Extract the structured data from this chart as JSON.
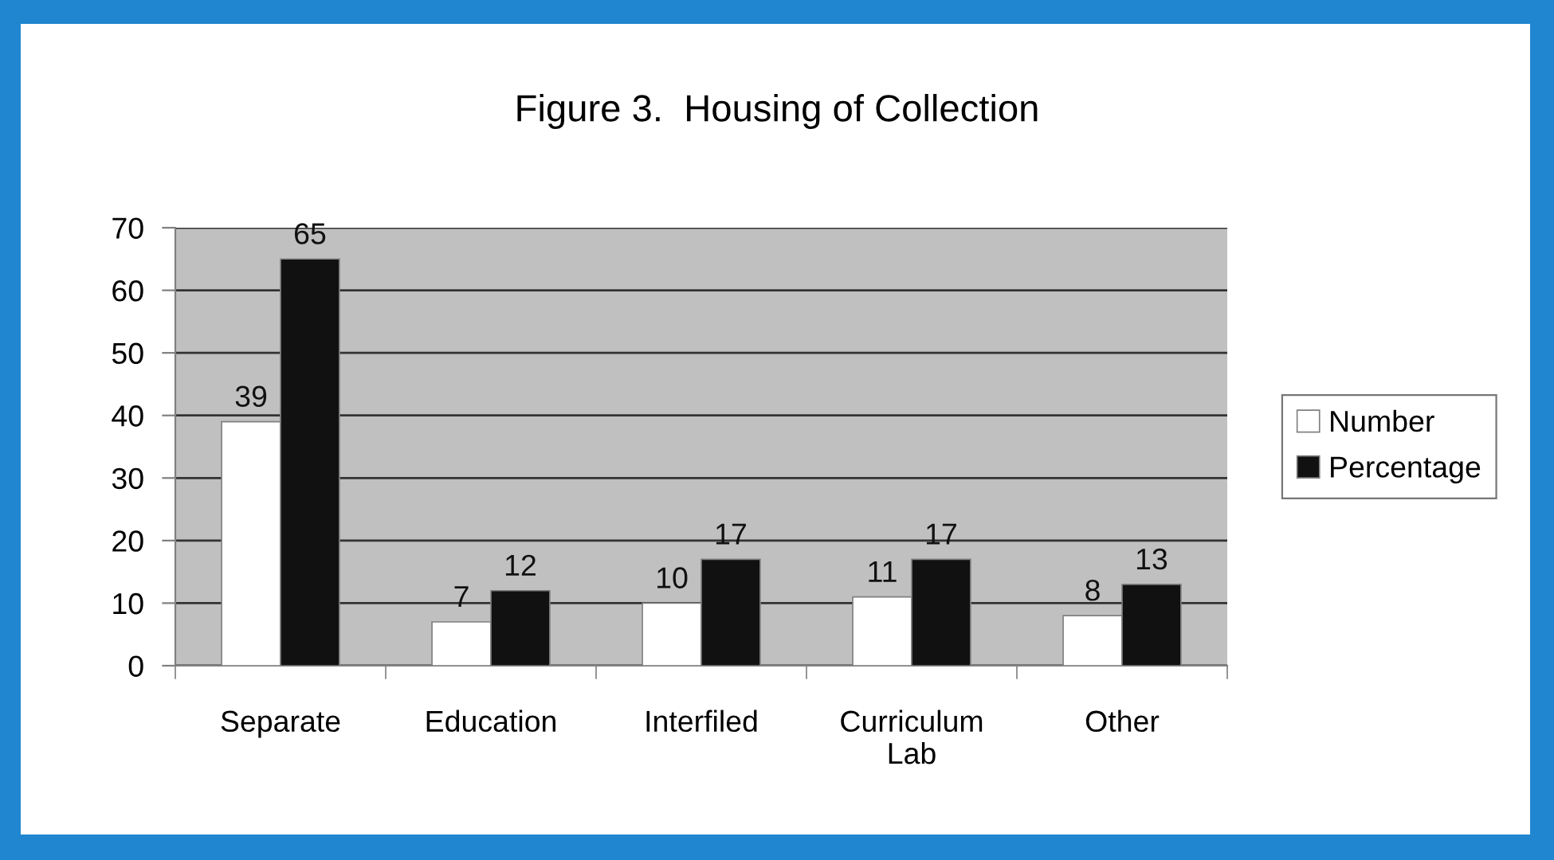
{
  "chart_data": {
    "type": "bar",
    "title": "Figure 3.  Housing of Collection",
    "categories": [
      "Separate",
      "Education",
      "Interfiled",
      "Curriculum\nLab",
      "Other"
    ],
    "series": [
      {
        "name": "Number",
        "color": "#ffffff",
        "values": [
          39,
          7,
          10,
          11,
          8
        ]
      },
      {
        "name": "Percentage",
        "color": "#111111",
        "values": [
          65,
          12,
          17,
          17,
          13
        ]
      }
    ],
    "ylim": [
      0,
      70
    ],
    "yticks": [
      0,
      10,
      20,
      30,
      40,
      50,
      60,
      70
    ],
    "grid": "y",
    "legend": "right",
    "data_labels": true
  }
}
